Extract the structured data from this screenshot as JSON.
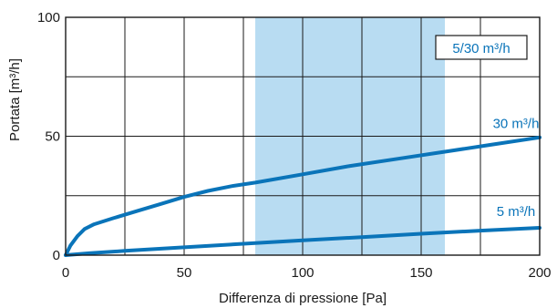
{
  "chart_data": {
    "type": "line",
    "xlabel": "Differenza di pressione [Pa]",
    "ylabel": "Portata [m³/h]",
    "xlim": [
      0,
      200
    ],
    "ylim": [
      0,
      100
    ],
    "x_ticks": [
      {
        "value": 0,
        "label": "0"
      },
      {
        "value": 50,
        "label": "50"
      },
      {
        "value": 100,
        "label": "100"
      },
      {
        "value": 150,
        "label": "150"
      },
      {
        "value": 200,
        "label": "200"
      }
    ],
    "y_ticks": [
      {
        "value": 0,
        "label": "0"
      },
      {
        "value": 50,
        "label": "50"
      },
      {
        "value": 100,
        "label": "100"
      }
    ],
    "x_grid": [
      0,
      25,
      50,
      75,
      100,
      125,
      150,
      175,
      200
    ],
    "y_grid": [
      0,
      25,
      50,
      75,
      100
    ],
    "grid": true,
    "shaded_band": {
      "x_from": 80,
      "x_to": 160,
      "color": "#b8dcf2"
    },
    "annotation": "5/30 m³/h",
    "series": [
      {
        "name": "30 m³/h",
        "color": "#0a74b9",
        "x": [
          0,
          2,
          5,
          8,
          12,
          20,
          30,
          40,
          50,
          60,
          70,
          80,
          100,
          120,
          140,
          160,
          180,
          200
        ],
        "y": [
          0,
          4,
          8,
          11,
          13,
          15.5,
          18.5,
          21.5,
          24.5,
          27,
          29,
          30.5,
          34,
          37.5,
          40.5,
          43.5,
          46.5,
          49.5
        ]
      },
      {
        "name": "5 m³/h",
        "color": "#0a74b9",
        "x": [
          0,
          10,
          25,
          50,
          75,
          100,
          125,
          150,
          175,
          200
        ],
        "y": [
          0,
          0.8,
          1.8,
          3.3,
          4.8,
          6.2,
          7.6,
          9,
          10.3,
          11.5
        ]
      }
    ]
  }
}
